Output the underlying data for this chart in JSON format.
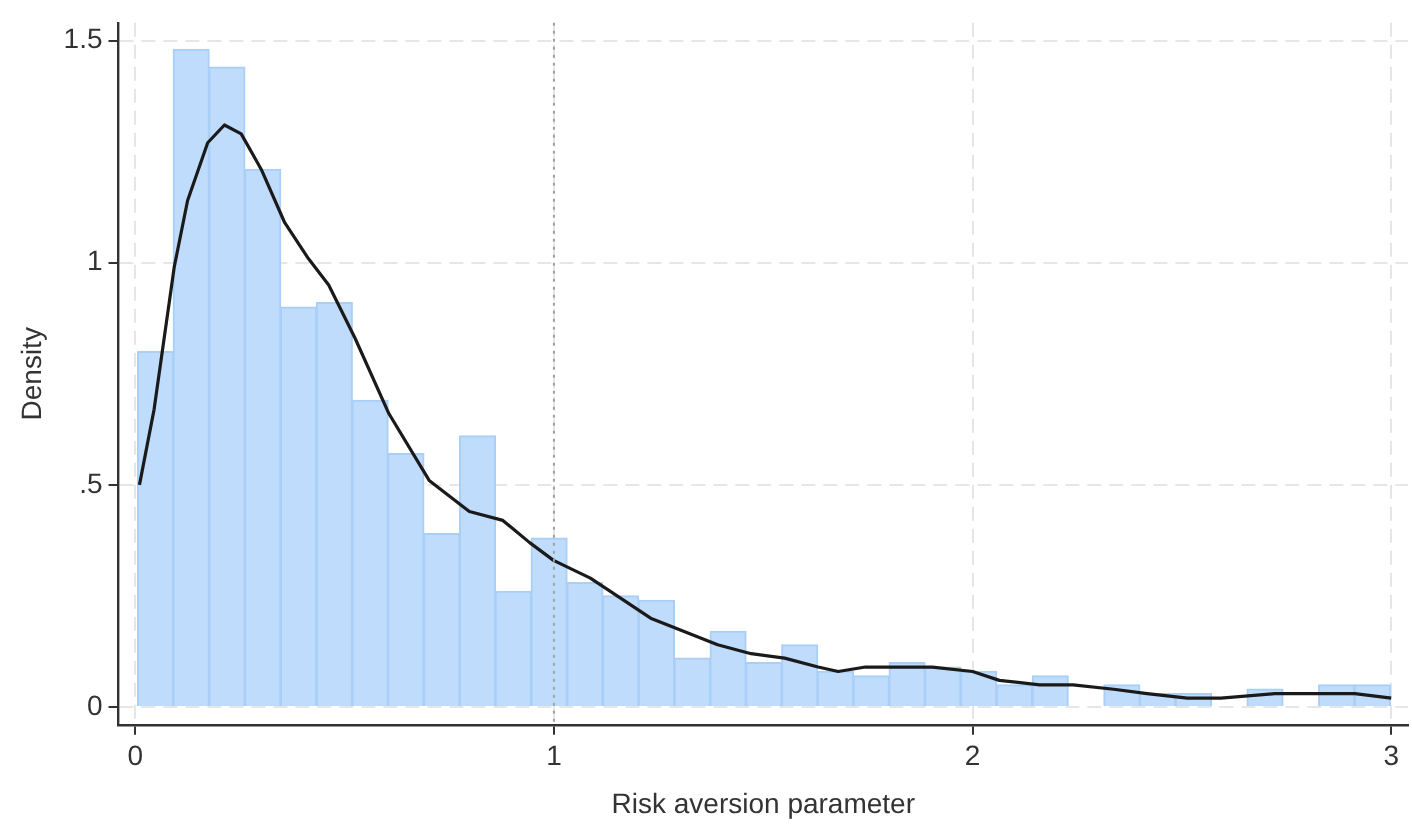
{
  "chart_data": {
    "type": "histogram",
    "xlabel": "Risk aversion parameter",
    "ylabel": "Density",
    "xlim": [
      -0.04,
      3.04
    ],
    "ylim": [
      -0.04,
      1.54
    ],
    "xticks": [
      0,
      1,
      2,
      3
    ],
    "yticks": [
      0,
      {
        "value": 0.5,
        "label": ".5"
      },
      1,
      1.5
    ],
    "grid": true,
    "legend": false,
    "ref_lines": [
      {
        "axis": "x",
        "value": 1,
        "color": "#a0a0a0",
        "line_style": "dotted"
      }
    ],
    "series": [
      {
        "type": "histogram",
        "color": "#bfdcfc",
        "bins": [
          0.005,
          0.091,
          0.176,
          0.262,
          0.347,
          0.433,
          0.518,
          0.604,
          0.689,
          0.775,
          0.86,
          0.946,
          1.031,
          1.117,
          1.202,
          1.288,
          1.373,
          1.459,
          1.544,
          1.63,
          1.715,
          1.801,
          1.886,
          1.972,
          2.057,
          2.143,
          2.228,
          2.314,
          2.399,
          2.485,
          2.57,
          2.656,
          2.741,
          2.827,
          2.912,
          2.998
        ],
        "values": [
          0.8,
          1.48,
          1.44,
          1.21,
          0.9,
          0.91,
          0.69,
          0.57,
          0.39,
          0.61,
          0.26,
          0.38,
          0.28,
          0.25,
          0.24,
          0.11,
          0.17,
          0.1,
          0.14,
          0.08,
          0.07,
          0.1,
          0.09,
          0.08,
          0.05,
          0.07,
          0,
          0.05,
          0.03,
          0.03,
          0,
          0.04,
          0,
          0.05,
          0.05
        ]
      },
      {
        "type": "line",
        "color": "#1a1a1a",
        "x": [
          0.01,
          0.045,
          0.093,
          0.125,
          0.173,
          0.213,
          0.253,
          0.301,
          0.357,
          0.413,
          0.462,
          0.525,
          0.606,
          0.702,
          0.798,
          0.878,
          0.942,
          0.999,
          1.087,
          1.151,
          1.231,
          1.311,
          1.391,
          1.471,
          1.551,
          1.631,
          1.679,
          1.744,
          1.824,
          1.904,
          2.0,
          2.064,
          2.16,
          2.24,
          2.337,
          2.417,
          2.513,
          2.593,
          2.721,
          2.913,
          3.0
        ],
        "values": [
          0.5,
          0.67,
          0.99,
          1.14,
          1.27,
          1.31,
          1.29,
          1.21,
          1.09,
          1.01,
          0.95,
          0.83,
          0.66,
          0.51,
          0.44,
          0.42,
          0.37,
          0.33,
          0.29,
          0.25,
          0.2,
          0.17,
          0.14,
          0.12,
          0.11,
          0.09,
          0.08,
          0.09,
          0.09,
          0.09,
          0.08,
          0.06,
          0.05,
          0.05,
          0.04,
          0.03,
          0.02,
          0.02,
          0.03,
          0.03,
          0.02
        ]
      }
    ]
  }
}
